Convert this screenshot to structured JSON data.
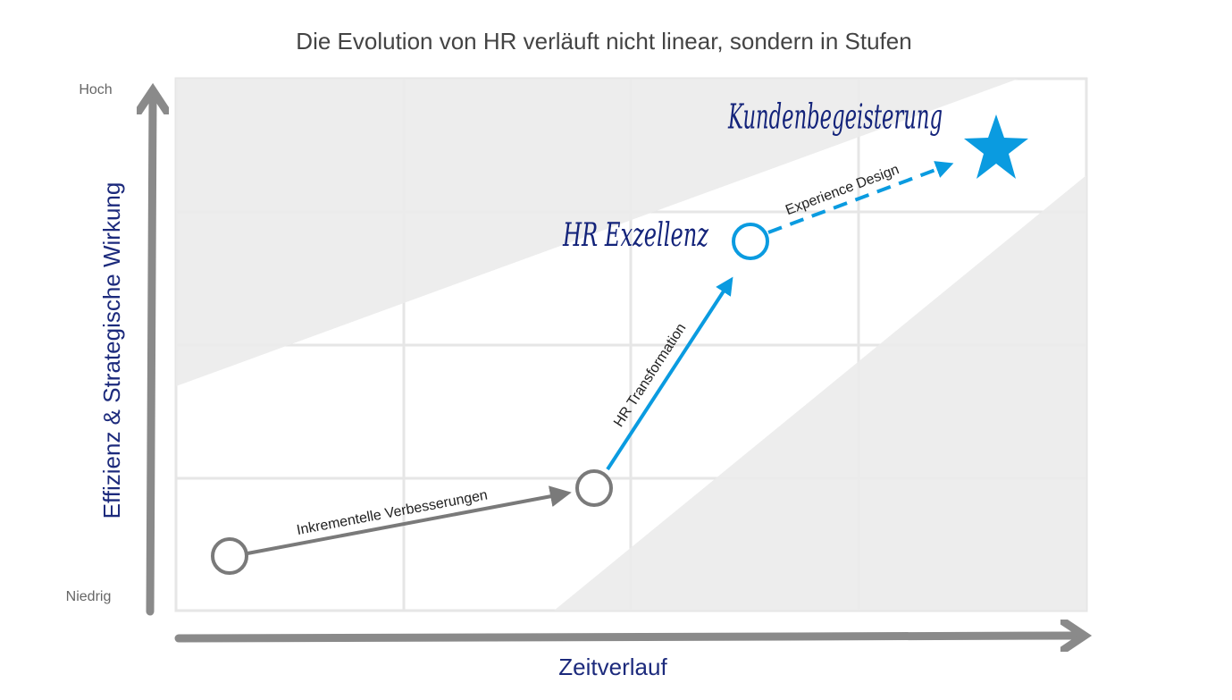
{
  "title": "Die Evolution von HR verläuft nicht linear, sondern in Stufen",
  "y_axis": {
    "label": "Effizienz & Strategische Wirkung",
    "high": "Hoch",
    "low": "Niedrig"
  },
  "x_axis": {
    "label": "Zeitverlauf"
  },
  "stages": [
    {
      "label": "HR Exzellenz"
    },
    {
      "label": "Kundenbegeisterung"
    }
  ],
  "transitions": [
    {
      "label": "Inkrementelle Verbesserungen"
    },
    {
      "label": "HR Transformation"
    },
    {
      "label": "Experience Design"
    }
  ]
}
